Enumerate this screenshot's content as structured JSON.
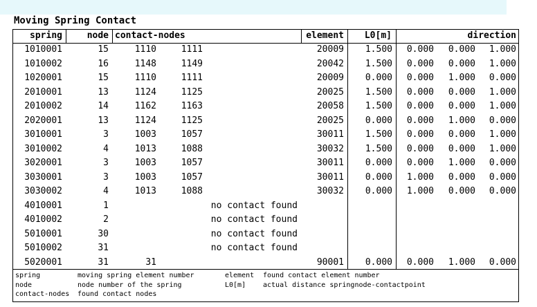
{
  "title": "Moving Spring Contact",
  "header": {
    "spring": "spring",
    "node": "node",
    "contact_nodes": "contact-nodes",
    "element": "element",
    "L0": "L0[m]",
    "direction": "direction"
  },
  "rows": [
    {
      "spring": "1010001",
      "node": "15",
      "contact_nodes": [
        "1110",
        "1111"
      ],
      "element": "20009",
      "L0": "1.500",
      "direction": [
        "0.000",
        "0.000",
        "1.000"
      ]
    },
    {
      "spring": "1010002",
      "node": "16",
      "contact_nodes": [
        "1148",
        "1149"
      ],
      "element": "20042",
      "L0": "1.500",
      "direction": [
        "0.000",
        "0.000",
        "1.000"
      ]
    },
    {
      "spring": "1020001",
      "node": "15",
      "contact_nodes": [
        "1110",
        "1111"
      ],
      "element": "20009",
      "L0": "0.000",
      "direction": [
        "0.000",
        "1.000",
        "0.000"
      ]
    },
    {
      "spring": "2010001",
      "node": "13",
      "contact_nodes": [
        "1124",
        "1125"
      ],
      "element": "20025",
      "L0": "1.500",
      "direction": [
        "0.000",
        "0.000",
        "1.000"
      ]
    },
    {
      "spring": "2010002",
      "node": "14",
      "contact_nodes": [
        "1162",
        "1163"
      ],
      "element": "20058",
      "L0": "1.500",
      "direction": [
        "0.000",
        "0.000",
        "1.000"
      ]
    },
    {
      "spring": "2020001",
      "node": "13",
      "contact_nodes": [
        "1124",
        "1125"
      ],
      "element": "20025",
      "L0": "0.000",
      "direction": [
        "0.000",
        "1.000",
        "0.000"
      ]
    },
    {
      "spring": "3010001",
      "node": "3",
      "contact_nodes": [
        "1003",
        "1057"
      ],
      "element": "30011",
      "L0": "1.500",
      "direction": [
        "0.000",
        "0.000",
        "1.000"
      ]
    },
    {
      "spring": "3010002",
      "node": "4",
      "contact_nodes": [
        "1013",
        "1088"
      ],
      "element": "30032",
      "L0": "1.500",
      "direction": [
        "0.000",
        "0.000",
        "1.000"
      ]
    },
    {
      "spring": "3020001",
      "node": "3",
      "contact_nodes": [
        "1003",
        "1057"
      ],
      "element": "30011",
      "L0": "0.000",
      "direction": [
        "0.000",
        "1.000",
        "0.000"
      ]
    },
    {
      "spring": "3030001",
      "node": "3",
      "contact_nodes": [
        "1003",
        "1057"
      ],
      "element": "30011",
      "L0": "0.000",
      "direction": [
        "1.000",
        "0.000",
        "0.000"
      ]
    },
    {
      "spring": "3030002",
      "node": "4",
      "contact_nodes": [
        "1013",
        "1088"
      ],
      "element": "30032",
      "L0": "0.000",
      "direction": [
        "1.000",
        "0.000",
        "0.000"
      ]
    },
    {
      "spring": "4010001",
      "node": "1",
      "note": "no contact found"
    },
    {
      "spring": "4010002",
      "node": "2",
      "note": "no contact found"
    },
    {
      "spring": "5010001",
      "node": "30",
      "note": "no contact found"
    },
    {
      "spring": "5010002",
      "node": "31",
      "note": "no contact found"
    },
    {
      "spring": "5020001",
      "node": "31",
      "contact_nodes": [
        "31"
      ],
      "element": "90001",
      "L0": "0.000",
      "direction": [
        "0.000",
        "1.000",
        "0.000"
      ]
    }
  ],
  "legend": [
    {
      "term": "spring",
      "text": "moving spring element number"
    },
    {
      "term": "node",
      "text": "node number of the spring"
    },
    {
      "term": "contact-nodes",
      "text": "found contact nodes"
    },
    {
      "term": "element",
      "text": "found contact element number"
    },
    {
      "term": "L0[m]",
      "text": "actual distance springnode-contactpoint"
    }
  ]
}
